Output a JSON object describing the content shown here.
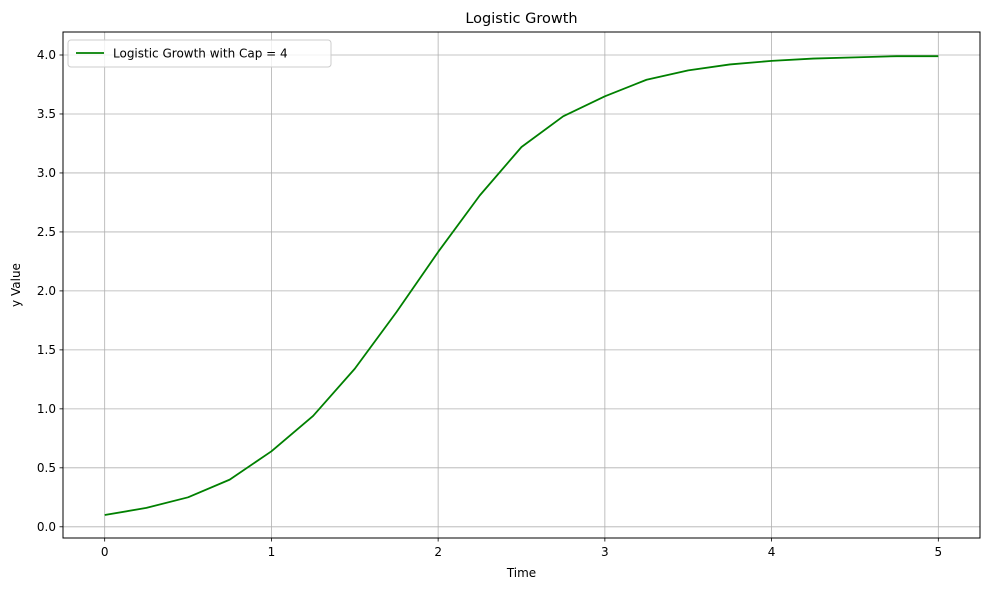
{
  "chart_data": {
    "type": "line",
    "title": "Logistic Growth",
    "xlabel": "Time",
    "ylabel": "y Value",
    "xlim": [
      -0.25,
      5.25
    ],
    "ylim": [
      -0.095,
      4.195
    ],
    "xticks": [
      0,
      1,
      2,
      3,
      4,
      5
    ],
    "xtick_labels": [
      "0",
      "1",
      "2",
      "3",
      "4",
      "5"
    ],
    "yticks": [
      0.0,
      0.5,
      1.0,
      1.5,
      2.0,
      2.5,
      3.0,
      3.5,
      4.0
    ],
    "ytick_labels": [
      "0.0",
      "0.5",
      "1.0",
      "1.5",
      "2.0",
      "2.5",
      "3.0",
      "3.5",
      "4.0"
    ],
    "grid": true,
    "legend_position": "upper-left",
    "series": [
      {
        "name": "Logistic Growth with Cap = 4",
        "color": "#008000",
        "x": [
          0,
          0.25,
          0.5,
          0.75,
          1.0,
          1.25,
          1.5,
          1.75,
          2.0,
          2.25,
          2.5,
          2.75,
          3.0,
          3.25,
          3.5,
          3.75,
          4.0,
          4.25,
          4.5,
          4.75,
          5.0
        ],
        "y": [
          0.1,
          0.16,
          0.25,
          0.4,
          0.64,
          0.94,
          1.34,
          1.82,
          2.33,
          2.81,
          3.22,
          3.48,
          3.65,
          3.79,
          3.87,
          3.92,
          3.95,
          3.97,
          3.98,
          3.99,
          3.99
        ]
      }
    ]
  }
}
